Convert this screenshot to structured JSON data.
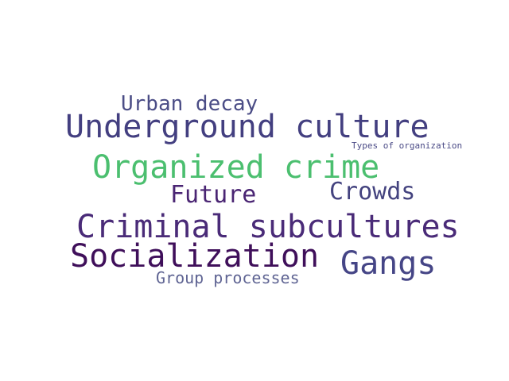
{
  "word_cloud": {
    "words": [
      {
        "text": "Urban decay",
        "color": "#4b4d86"
      },
      {
        "text": "Underground culture",
        "color": "#433f80"
      },
      {
        "text": "Types of organization",
        "color": "#4b4b86"
      },
      {
        "text": "Organized crime",
        "color": "#4bbf6f"
      },
      {
        "text": "Future",
        "color": "#4a2573"
      },
      {
        "text": "Crowds",
        "color": "#44437f"
      },
      {
        "text": "Criminal subcultures",
        "color": "#4a2b78"
      },
      {
        "text": "Socialization",
        "color": "#3f0f5a"
      },
      {
        "text": "Gangs",
        "color": "#454586"
      },
      {
        "text": "Group processes",
        "color": "#5f6493"
      }
    ]
  }
}
